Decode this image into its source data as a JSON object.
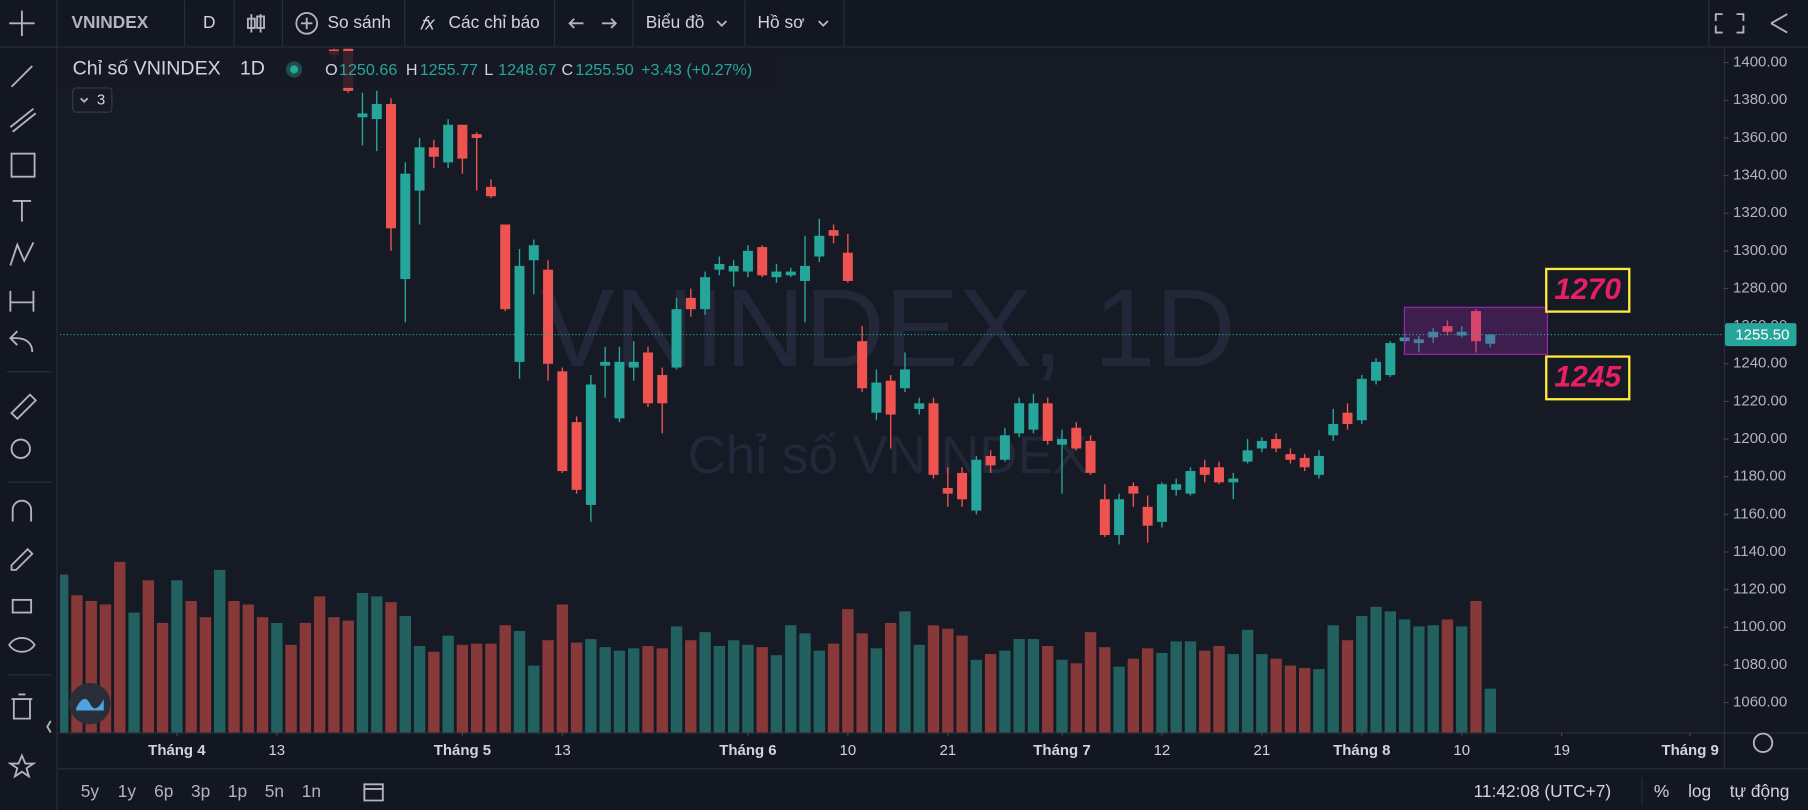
{
  "toolbar": {
    "symbol": "VNINDEX",
    "interval": "D",
    "compare": "So sánh",
    "indicators": "Các chỉ báo",
    "chart": "Biểu đồ",
    "profile": "Hồ sơ"
  },
  "chart_data": {
    "type": "candlestick",
    "title": "Chỉ số VNINDEX",
    "interval": "1D",
    "indicator_count": 3,
    "legend": {
      "o": "O",
      "h": "H",
      "l": "L",
      "c": "C",
      "change": "+3.43 (+0.27%)"
    },
    "last_close_label": "1255.50",
    "watermark": {
      "line1": "VNINDEX, 1D",
      "line2": "Chỉ số VNINDEX"
    },
    "up_color": "#26a69a",
    "down_color": "#ef5350",
    "open": [
      null,
      null,
      null,
      null,
      null,
      null,
      null,
      null,
      null,
      null,
      null,
      null,
      null,
      null,
      null,
      null,
      null,
      null,
      null,
      1407,
      1408,
      1371,
      1370,
      1378,
      1285,
      1332,
      1355,
      1347,
      1367,
      1362,
      1334,
      1314,
      1241,
      1295,
      1290,
      1236,
      1209,
      1165,
      1239,
      1211,
      1238,
      1246,
      1234,
      1238,
      1275,
      1269,
      1290,
      1289,
      1289,
      1302,
      1286,
      1287,
      1284,
      1297,
      1311,
      1299,
      1252,
      1214,
      1231,
      1227,
      1216,
      1219,
      1174,
      1182,
      1162,
      1191,
      1189,
      1203,
      1205,
      1219,
      1197,
      1206,
      1199,
      1168,
      1149,
      1175,
      1164,
      1156,
      1173,
      1171,
      1185,
      1185,
      1177,
      1188,
      1195,
      1200,
      1192,
      1190,
      1181,
      1202,
      1214,
      1210,
      1231,
      1234,
      1252,
      1251,
      1254,
      1260,
      1255,
      1268,
      1250.66
    ],
    "high": [
      null,
      null,
      null,
      null,
      null,
      null,
      null,
      null,
      null,
      null,
      null,
      null,
      null,
      null,
      null,
      null,
      null,
      null,
      null,
      1409,
      1412,
      1384,
      1385,
      1381,
      1347,
      1360,
      1359,
      1370,
      1367,
      1363,
      1338,
      1314,
      1301,
      1306,
      1295,
      1238,
      1212,
      1234,
      1249,
      1249,
      1252,
      1249,
      1238,
      1275,
      1280,
      1289,
      1297,
      1295,
      1303,
      1303,
      1293,
      1291,
      1308,
      1317,
      1314,
      1309,
      1260,
      1237,
      1234,
      1246,
      1222,
      1222,
      1185,
      1185,
      1191,
      1194,
      1206,
      1222,
      1224,
      1222,
      1205,
      1209,
      1202,
      1176,
      1171,
      1177,
      1170,
      1177,
      1179,
      1185,
      1189,
      1188,
      1182,
      1200,
      1201,
      1203,
      1195,
      1192,
      1194,
      1216,
      1219,
      1234,
      1243,
      1252,
      1256,
      1255,
      1259,
      1263,
      1260,
      1269,
      1255.77
    ],
    "low": [
      null,
      null,
      null,
      null,
      null,
      null,
      null,
      null,
      null,
      null,
      null,
      null,
      null,
      null,
      null,
      null,
      null,
      null,
      null,
      1402,
      1384,
      1356,
      1353,
      1300,
      1262,
      1314,
      1344,
      1344,
      1341,
      1332,
      1328,
      1268,
      1232,
      1277,
      1231,
      1182,
      1171,
      1156,
      1222,
      1209,
      1231,
      1217,
      1203,
      1237,
      1265,
      1266,
      1287,
      1281,
      1286,
      1286,
      1283,
      1286,
      1262,
      1294,
      1304,
      1283,
      1225,
      1210,
      1195,
      1225,
      1213,
      1179,
      1164,
      1164,
      1160,
      1182,
      1188,
      1201,
      1203,
      1197,
      1171,
      1194,
      1181,
      1148,
      1144,
      1164,
      1145,
      1153,
      1170,
      1170,
      1177,
      1176,
      1168,
      1187,
      1193,
      1193,
      1187,
      1183,
      1179,
      1199,
      1205,
      1208,
      1229,
      1233,
      1250,
      1246,
      1251,
      1255,
      1254,
      1246,
      1248.67
    ],
    "close": [
      null,
      null,
      null,
      null,
      null,
      null,
      null,
      null,
      null,
      null,
      null,
      null,
      null,
      null,
      null,
      null,
      null,
      null,
      null,
      1404,
      1385,
      1373,
      1378,
      1312,
      1341,
      1355,
      1350,
      1367,
      1349,
      1360,
      1329,
      1269,
      1292,
      1303,
      1240,
      1183,
      1173,
      1229,
      1241,
      1241,
      1241,
      1219,
      1219,
      1269,
      1269,
      1286,
      1293,
      1292,
      1300,
      1287,
      1289,
      1289,
      1292,
      1308,
      1308,
      1284,
      1227,
      1230,
      1213,
      1237,
      1219,
      1181,
      1171,
      1168,
      1189,
      1186,
      1202,
      1219,
      1219,
      1199,
      1200,
      1195,
      1182,
      1149,
      1168,
      1171,
      1154,
      1176,
      1176,
      1183,
      1181,
      1177,
      1179,
      1194,
      1199,
      1195,
      1189,
      1185,
      1191,
      1208,
      1208,
      1232,
      1241,
      1251,
      1254,
      1253,
      1257,
      1257,
      1257,
      1252,
      1255.5
    ],
    "volume": {
      "values": [
        137,
        119,
        114,
        111,
        148,
        104,
        132,
        95,
        132,
        114,
        100,
        141,
        114,
        111,
        100,
        95,
        76,
        95,
        118,
        100,
        97,
        121,
        118,
        113,
        101,
        75,
        70,
        84,
        76,
        77,
        77,
        93,
        88,
        58,
        80,
        111,
        78,
        81,
        74,
        71,
        73,
        75,
        73,
        92,
        80,
        87,
        75,
        80,
        76,
        74,
        67,
        93,
        86,
        71,
        77,
        107,
        86,
        73,
        95,
        105,
        76,
        93,
        90,
        84,
        63,
        68,
        71,
        81,
        81,
        75,
        63,
        60,
        87,
        74,
        57,
        64,
        73,
        69,
        79,
        79,
        71,
        75,
        68,
        89,
        68,
        64,
        58,
        56,
        55,
        93,
        80,
        101,
        109,
        105,
        98,
        92,
        93,
        98,
        92,
        114,
        38
      ],
      "colors": [
        "#22615f",
        "#873838",
        "#873838",
        "#873838",
        "#873838",
        "#22615f",
        "#873838",
        "#873838",
        "#22615f",
        "#873838",
        "#873838",
        "#22615f",
        "#873838",
        "#873838",
        "#873838",
        "#22615f",
        "#873838",
        "#873838",
        "#873838",
        "#873838",
        "#873838",
        "#22615f",
        "#22615f",
        "#873838",
        "#22615f",
        "#22615f",
        "#873838",
        "#22615f",
        "#873838",
        "#873838",
        "#873838",
        "#873838",
        "#22615f",
        "#22615f",
        "#873838",
        "#873838",
        "#873838",
        "#22615f",
        "#22615f",
        "#22615f",
        "#22615f",
        "#873838",
        "#873838",
        "#22615f",
        "#873838",
        "#22615f",
        "#22615f",
        "#22615f",
        "#22615f",
        "#873838",
        "#22615f",
        "#22615f",
        "#22615f",
        "#22615f",
        "#873838",
        "#873838",
        "#873838",
        "#22615f",
        "#873838",
        "#22615f",
        "#22615f",
        "#873838",
        "#873838",
        "#873838",
        "#22615f",
        "#873838",
        "#22615f",
        "#22615f",
        "#22615f",
        "#873838",
        "#22615f",
        "#873838",
        "#873838",
        "#873838",
        "#22615f",
        "#873838",
        "#873838",
        "#22615f",
        "#22615f",
        "#22615f",
        "#873838",
        "#873838",
        "#22615f",
        "#22615f",
        "#22615f",
        "#873838",
        "#873838",
        "#873838",
        "#22615f",
        "#22615f",
        "#873838",
        "#22615f",
        "#22615f",
        "#22615f",
        "#22615f",
        "#22615f",
        "#22615f",
        "#873838",
        "#22615f",
        "#873838",
        "#22615f"
      ]
    },
    "zone": {
      "top": 1270,
      "bottom": 1245,
      "color": "#9c27b0",
      "label_color": "#e91e63",
      "box_color": "#ffeb3b"
    },
    "ylim": [
      1044.1,
      1407.4
    ],
    "yticks": [
      {
        "value": 1060,
        "label": "1060.00"
      },
      {
        "value": 1080,
        "label": "1080.00"
      },
      {
        "value": 1100,
        "label": "1100.00"
      },
      {
        "value": 1120,
        "label": "1120.00"
      },
      {
        "value": 1140,
        "label": "1140.00"
      },
      {
        "value": 1160,
        "label": "1160.00"
      },
      {
        "value": 1180,
        "label": "1180.00"
      },
      {
        "value": 1200,
        "label": "1200.00"
      },
      {
        "value": 1220,
        "label": "1220.00"
      },
      {
        "value": 1240,
        "label": "1240.00"
      },
      {
        "value": 1260,
        "label": "1260.00"
      },
      {
        "value": 1280,
        "label": "1280.00"
      },
      {
        "value": 1300,
        "label": "1300.00"
      },
      {
        "value": 1320,
        "label": "1320.00"
      },
      {
        "value": 1340,
        "label": "1340.00"
      },
      {
        "value": 1360,
        "label": "1360.00"
      },
      {
        "value": 1380,
        "label": "1380.00"
      },
      {
        "value": 1400,
        "label": "1400.00"
      }
    ],
    "xlim": [
      -0.19,
      116.36
    ],
    "xticks": [
      {
        "value": 8,
        "label": "Tháng 4"
      },
      {
        "value": 15,
        "label": "13"
      },
      {
        "value": 28,
        "label": "Tháng 5"
      },
      {
        "value": 35,
        "label": "13"
      },
      {
        "value": 48,
        "label": "Tháng 6"
      },
      {
        "value": 55,
        "label": "10"
      },
      {
        "value": 62,
        "label": "21"
      },
      {
        "value": 70,
        "label": "Tháng 7"
      },
      {
        "value": 77,
        "label": "12"
      },
      {
        "value": 84,
        "label": "21"
      },
      {
        "value": 91,
        "label": "Tháng 8"
      },
      {
        "value": 98,
        "label": "10"
      },
      {
        "value": 105,
        "label": "19"
      },
      {
        "value": 114,
        "label": "Tháng 9"
      }
    ]
  },
  "footer": {
    "ranges": [
      "5y",
      "1y",
      "6p",
      "3p",
      "1p",
      "5n",
      "1n"
    ],
    "time": "11:42:08 (UTC+7)",
    "percent": "%",
    "log": "log",
    "auto": "tự động"
  }
}
